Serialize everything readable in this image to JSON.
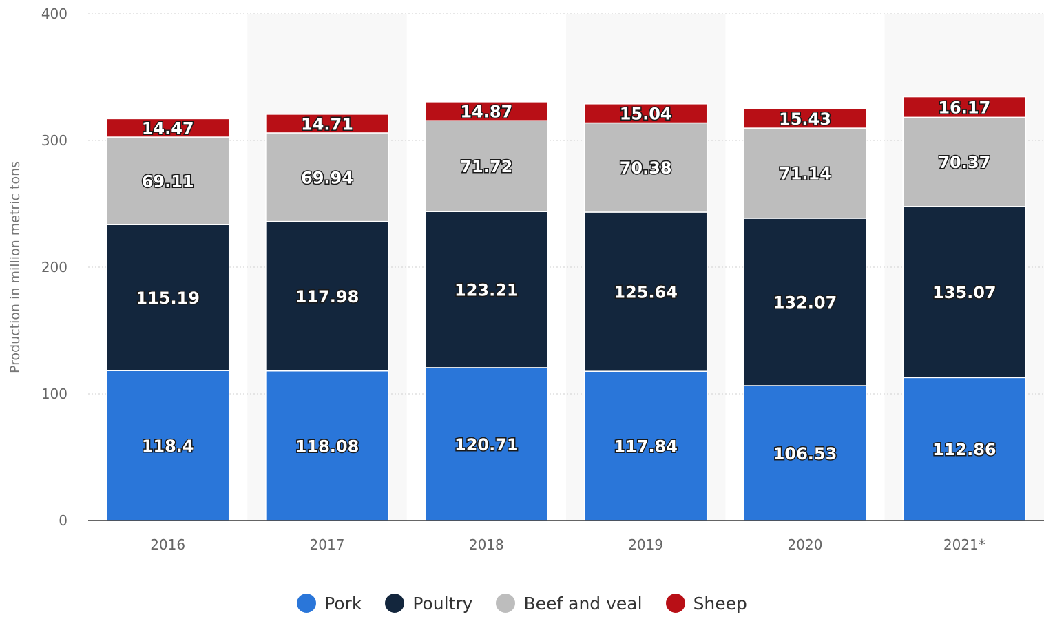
{
  "chart_data": {
    "type": "bar",
    "stacked": true,
    "title": "",
    "xlabel": "",
    "ylabel": "Production in million metric tons",
    "ylim": [
      0,
      400
    ],
    "yticks": [
      0,
      100,
      200,
      300,
      400
    ],
    "grid": true,
    "legend_position": "bottom",
    "categories": [
      "2016",
      "2017",
      "2018",
      "2019",
      "2020",
      "2021*"
    ],
    "series": [
      {
        "name": "Pork",
        "color": "#2a76d9",
        "values": [
          118.4,
          118.08,
          120.71,
          117.84,
          106.53,
          112.86
        ]
      },
      {
        "name": "Poultry",
        "color": "#13263d",
        "values": [
          115.19,
          117.98,
          123.21,
          125.64,
          132.07,
          135.07
        ]
      },
      {
        "name": "Beef and veal",
        "color": "#bdbdbd",
        "values": [
          69.11,
          69.94,
          71.72,
          70.38,
          71.14,
          70.37
        ]
      },
      {
        "name": "Sheep",
        "color": "#b80f16",
        "values": [
          14.47,
          14.71,
          14.87,
          15.04,
          15.43,
          16.17
        ]
      }
    ]
  }
}
